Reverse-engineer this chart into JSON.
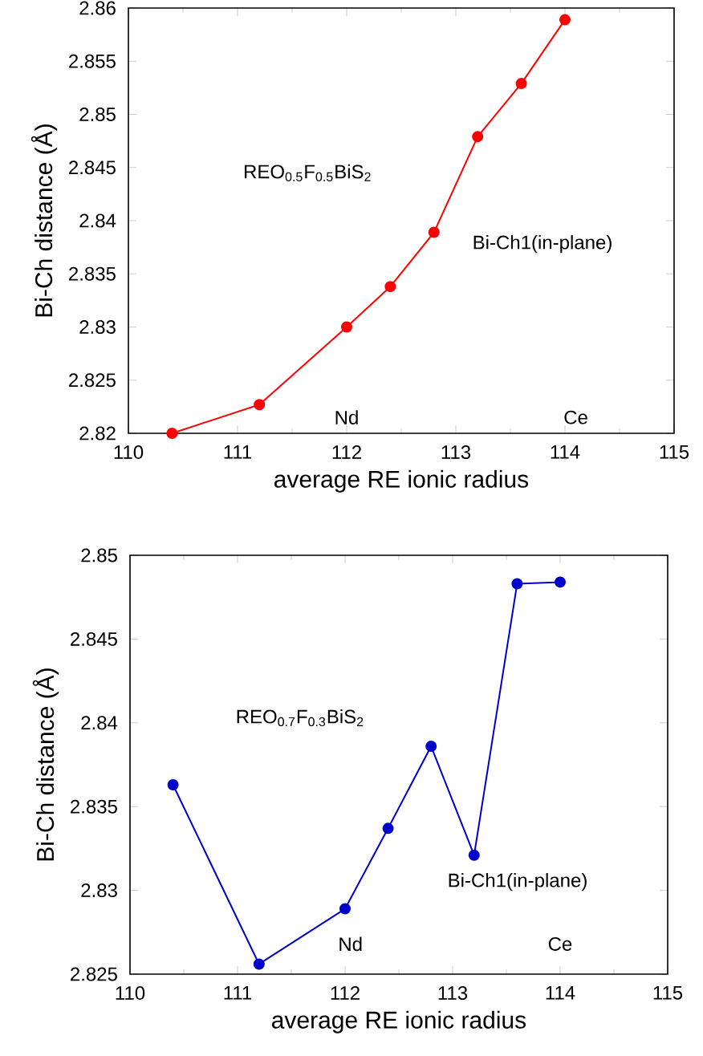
{
  "chart_data": [
    {
      "type": "line",
      "xlabel": "average RE ionic radius",
      "ylabel": "Bi-Ch distance (Å)",
      "annotations": [
        "REO$_{0.5}$F$_{0.5}$BiS$_{2}$",
        "Bi-Ch1(in-plane)",
        "Nd",
        "Ce"
      ],
      "x": [
        110.4,
        111.2,
        112.0,
        112.4,
        112.8,
        113.2,
        113.6,
        114.0
      ],
      "series": [
        {
          "color": "#ff0000",
          "values": [
            2.82,
            2.8227,
            2.83,
            2.8338,
            2.8389,
            2.8479,
            2.8529,
            2.8589
          ]
        }
      ],
      "xlim": [
        110,
        115
      ],
      "ylim": [
        2.82,
        2.86
      ],
      "xticks": [
        110,
        111,
        112,
        113,
        114,
        115
      ],
      "yticks": [
        2.82,
        2.825,
        2.83,
        2.835,
        2.84,
        2.845,
        2.85,
        2.855,
        2.86
      ],
      "marker": "circle",
      "line_style": "solid",
      "grid": false
    },
    {
      "type": "line",
      "xlabel": "average RE ionic radius",
      "ylabel": "Bi-Ch distance (Å)",
      "annotations": [
        "REO$_{0.7}$F$_{0.3}$BiS$_{2}$",
        "Bi-Ch1(in-plane)",
        "Nd",
        "Ce"
      ],
      "x": [
        110.4,
        111.2,
        112.0,
        112.4,
        112.8,
        113.2,
        113.6,
        114.0
      ],
      "series": [
        {
          "color": "#0000cc",
          "values": [
            2.8363,
            2.8256,
            2.8289,
            2.8337,
            2.8386,
            2.8321,
            2.8483,
            2.8484
          ]
        }
      ],
      "xlim": [
        110,
        115
      ],
      "ylim": [
        2.825,
        2.85
      ],
      "xticks": [
        110,
        111,
        112,
        113,
        114,
        115
      ],
      "yticks": [
        2.825,
        2.83,
        2.835,
        2.84,
        2.845,
        2.85
      ],
      "marker": "circle",
      "line_style": "solid",
      "grid": false
    }
  ]
}
